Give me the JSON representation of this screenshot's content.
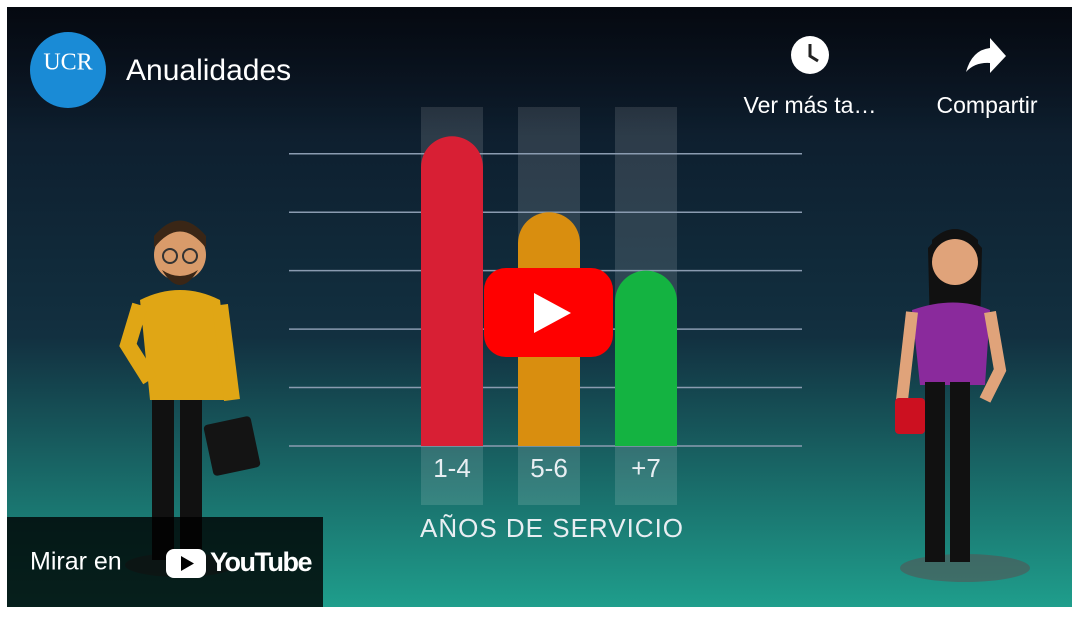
{
  "header": {
    "channel_logo": "UCR",
    "title": "Anualidades"
  },
  "actions": [
    {
      "label": "Ver más ta…"
    },
    {
      "label": "Compartir"
    }
  ],
  "chart_data": {
    "type": "bar",
    "categories": [
      "1-4",
      "5-6",
      "+7"
    ],
    "values": [
      5.3,
      4,
      3
    ],
    "colors": [
      "#d81f34",
      "#d98e0f",
      "#14b341"
    ],
    "ylim": [
      0,
      5.8
    ],
    "yticks": [
      1,
      2,
      3,
      4,
      5
    ],
    "grid": true,
    "x_label": "AÑOS DE SERVICIO"
  },
  "watch_button": {
    "prefix": "Mirar en",
    "brand": "YouTube"
  }
}
